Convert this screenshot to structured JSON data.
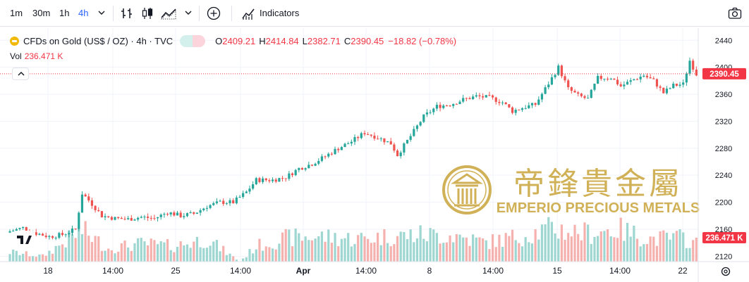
{
  "toolbar": {
    "timeframes": [
      "1m",
      "30m",
      "1h",
      "4h"
    ],
    "active_timeframe": "4h",
    "indicators_label": "Indicators"
  },
  "legend": {
    "symbol": "CFDs on Gold (US$ / OZ) · 4h · TVC",
    "open_key": "O",
    "open": "2409.21",
    "high_key": "H",
    "high": "2414.84",
    "low_key": "L",
    "low": "2382.71",
    "close_key": "C",
    "close": "2390.45",
    "change": "−18.82 (−0.78%)"
  },
  "volume": {
    "label": "Vol",
    "value": "236.471 K"
  },
  "watermark": {
    "chinese": "帝鋒貴金屬",
    "english": "EMPERIO PRECIOUS METALS"
  },
  "colors": {
    "up": "#26a69a",
    "down": "#ef5350",
    "vol_up": "#9ed6d1",
    "vol_down": "#f5b1ae",
    "accent": "#2962ff",
    "price_tag": "#f23645"
  },
  "chart_data": {
    "type": "candlestick",
    "timeframe": "4h",
    "price_axis": {
      "ticks": [
        2440,
        2400,
        2360,
        2320,
        2280,
        2240,
        2200,
        2160,
        2120
      ],
      "range": [
        2112,
        2458
      ]
    },
    "time_axis": {
      "ticks": [
        "18",
        "14:00",
        "25",
        "14:00",
        "Apr",
        "14:00",
        "8",
        "14:00",
        "15",
        "14:00",
        "22"
      ]
    },
    "last_price": "2390.45",
    "last_volume": "236.471 K",
    "close_path": [
      [
        0,
        2157
      ],
      [
        4,
        2162
      ],
      [
        8,
        2154
      ],
      [
        12,
        2149
      ],
      [
        16,
        2152
      ],
      [
        20,
        2160
      ],
      [
        22,
        2213
      ],
      [
        24,
        2203
      ],
      [
        28,
        2180
      ],
      [
        32,
        2176
      ],
      [
        36,
        2175
      ],
      [
        40,
        2178
      ],
      [
        44,
        2176
      ],
      [
        48,
        2185
      ],
      [
        52,
        2180
      ],
      [
        56,
        2183
      ],
      [
        60,
        2194
      ],
      [
        64,
        2200
      ],
      [
        68,
        2200
      ],
      [
        72,
        2215
      ],
      [
        75,
        2233
      ],
      [
        80,
        2233
      ],
      [
        84,
        2237
      ],
      [
        88,
        2250
      ],
      [
        92,
        2257
      ],
      [
        96,
        2268
      ],
      [
        100,
        2280
      ],
      [
        104,
        2290
      ],
      [
        108,
        2303
      ],
      [
        112,
        2296
      ],
      [
        116,
        2287
      ],
      [
        118,
        2270
      ],
      [
        122,
        2298
      ],
      [
        126,
        2327
      ],
      [
        130,
        2342
      ],
      [
        134,
        2345
      ],
      [
        138,
        2352
      ],
      [
        142,
        2357
      ],
      [
        146,
        2355
      ],
      [
        150,
        2348
      ],
      [
        153,
        2335
      ],
      [
        156,
        2340
      ],
      [
        160,
        2345
      ],
      [
        164,
        2376
      ],
      [
        167,
        2400
      ],
      [
        170,
        2368
      ],
      [
        173,
        2358
      ],
      [
        176,
        2353
      ],
      [
        179,
        2384
      ],
      [
        183,
        2385
      ],
      [
        186,
        2372
      ],
      [
        190,
        2382
      ],
      [
        193,
        2388
      ],
      [
        196,
        2380
      ],
      [
        199,
        2362
      ],
      [
        202,
        2373
      ],
      [
        205,
        2375
      ],
      [
        207,
        2410
      ],
      [
        209,
        2390
      ]
    ],
    "volume_path": [
      [
        0,
        16
      ],
      [
        10,
        9
      ],
      [
        22,
        52
      ],
      [
        30,
        22
      ],
      [
        40,
        30
      ],
      [
        50,
        26
      ],
      [
        60,
        38
      ],
      [
        70,
        0
      ],
      [
        75,
        26
      ],
      [
        85,
        40
      ],
      [
        95,
        42
      ],
      [
        105,
        38
      ],
      [
        115,
        42
      ],
      [
        125,
        45
      ],
      [
        135,
        44
      ],
      [
        145,
        32
      ],
      [
        155,
        42
      ],
      [
        165,
        55
      ],
      [
        175,
        48
      ],
      [
        185,
        54
      ],
      [
        195,
        38
      ],
      [
        205,
        40
      ],
      [
        209,
        30
      ]
    ]
  }
}
